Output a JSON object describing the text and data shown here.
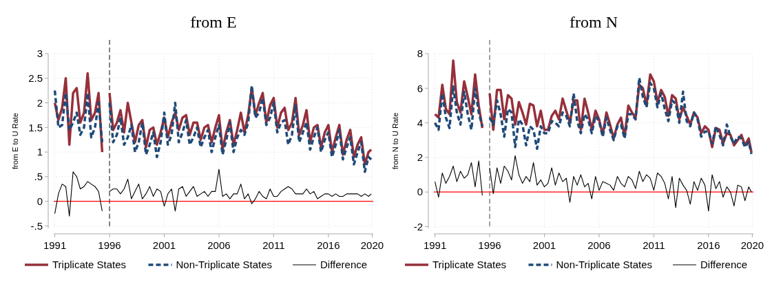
{
  "chart_data": [
    {
      "type": "line",
      "title": "from E",
      "ylabel": "from E to U Rate",
      "x": [
        1991,
        1991.33,
        1991.67,
        1992,
        1992.33,
        1992.67,
        1993,
        1993.33,
        1993.67,
        1994,
        1994.33,
        1994.67,
        1995,
        1995.33,
        1995.67,
        1996,
        1996.33,
        1996.67,
        1997,
        1997.33,
        1997.67,
        1998,
        1998.33,
        1998.67,
        1999,
        1999.33,
        1999.67,
        2000,
        2000.33,
        2000.67,
        2001,
        2001.33,
        2001.67,
        2002,
        2002.33,
        2002.67,
        2003,
        2003.33,
        2003.67,
        2004,
        2004.33,
        2004.67,
        2005,
        2005.33,
        2005.67,
        2006,
        2006.33,
        2006.67,
        2007,
        2007.33,
        2007.67,
        2008,
        2008.33,
        2008.67,
        2009,
        2009.33,
        2009.67,
        2010,
        2010.33,
        2010.67,
        2011,
        2011.33,
        2011.67,
        2012,
        2012.33,
        2012.67,
        2013,
        2013.33,
        2013.67,
        2014,
        2014.33,
        2014.67,
        2015,
        2015.33,
        2015.67,
        2016,
        2016.33,
        2016.67,
        2017,
        2017.33,
        2017.67,
        2018,
        2018.33,
        2018.67,
        2019,
        2019.33,
        2019.67,
        2019.92
      ],
      "series": [
        {
          "name": "Triplicate States",
          "color": "#96303a",
          "line_style": "solid",
          "values": [
            2.0,
            1.65,
            1.9,
            2.5,
            1.15,
            2.2,
            2.3,
            1.6,
            1.8,
            2.6,
            1.65,
            1.8,
            2.2,
            1.0,
            null,
            2.2,
            1.45,
            1.6,
            1.85,
            1.4,
            2.0,
            1.6,
            1.2,
            1.55,
            1.65,
            1.1,
            1.45,
            1.5,
            1.15,
            1.4,
            1.7,
            1.3,
            1.6,
            1.8,
            1.45,
            1.7,
            1.75,
            1.35,
            1.6,
            1.6,
            1.25,
            1.5,
            1.55,
            1.2,
            1.5,
            1.75,
            1.05,
            1.4,
            1.65,
            1.15,
            1.45,
            1.8,
            1.4,
            1.75,
            2.3,
            1.75,
            2.0,
            2.2,
            1.6,
            1.95,
            2.1,
            1.5,
            1.8,
            1.9,
            1.45,
            1.6,
            2.1,
            1.35,
            1.55,
            1.85,
            1.2,
            1.5,
            1.55,
            1.1,
            1.4,
            1.55,
            1.0,
            1.3,
            1.55,
            0.95,
            1.25,
            1.45,
            0.9,
            1.15,
            1.3,
            0.75,
            1.0,
            1.05
          ]
        },
        {
          "name": "Non-Triplicate States",
          "color": "#1f4a78",
          "line_style": "dashed",
          "values": [
            2.25,
            1.5,
            1.55,
            2.2,
            1.45,
            1.6,
            1.8,
            1.35,
            1.5,
            2.2,
            1.3,
            1.5,
            2.0,
            1.2,
            null,
            2.0,
            1.2,
            1.35,
            1.7,
            1.15,
            1.3,
            1.55,
            1.0,
            1.2,
            1.6,
            0.95,
            1.15,
            1.4,
            0.9,
            1.2,
            1.8,
            1.15,
            1.35,
            2.0,
            1.2,
            1.4,
            1.65,
            1.15,
            1.3,
            1.5,
            1.1,
            1.3,
            1.45,
            1.0,
            1.3,
            1.55,
            0.95,
            1.25,
            1.6,
            1.0,
            1.3,
            1.45,
            1.35,
            1.6,
            2.35,
            1.7,
            1.8,
            2.1,
            1.55,
            1.7,
            2.0,
            1.4,
            1.6,
            1.65,
            1.15,
            1.35,
            1.95,
            1.2,
            1.4,
            1.6,
            1.05,
            1.3,
            1.5,
            1.0,
            1.25,
            1.4,
            0.9,
            1.15,
            1.45,
            0.85,
            1.1,
            1.3,
            0.75,
            1.0,
            1.2,
            0.6,
            0.9,
            0.85
          ]
        },
        {
          "name": "Difference",
          "color": "#000000",
          "line_style": "solid",
          "values": [
            -0.25,
            0.15,
            0.35,
            0.3,
            -0.3,
            0.6,
            0.5,
            0.25,
            0.3,
            0.4,
            0.35,
            0.3,
            0.2,
            -0.2,
            null,
            0.2,
            0.25,
            0.25,
            0.15,
            0.25,
            0.45,
            0.05,
            0.2,
            0.35,
            0.05,
            0.15,
            0.3,
            0.1,
            0.25,
            0.2,
            -0.1,
            0.15,
            0.25,
            -0.2,
            0.25,
            0.3,
            0.1,
            0.2,
            0.3,
            0.1,
            0.15,
            0.2,
            0.1,
            0.2,
            0.2,
            0.65,
            0.1,
            0.15,
            0.05,
            0.15,
            0.15,
            0.35,
            0.05,
            0.15,
            -0.05,
            0.05,
            0.2,
            0.1,
            0.05,
            0.25,
            0.1,
            0.1,
            0.2,
            0.25,
            0.3,
            0.25,
            0.15,
            0.15,
            0.15,
            0.25,
            0.15,
            0.2,
            0.05,
            0.1,
            0.15,
            0.15,
            0.1,
            0.15,
            0.1,
            0.1,
            0.15,
            0.15,
            0.15,
            0.15,
            0.1,
            0.15,
            0.1,
            0.15
          ]
        }
      ],
      "xlim": [
        1990.9,
        2020.1
      ],
      "xticks": [
        1991,
        1996,
        2001,
        2006,
        2011,
        2016,
        2020
      ],
      "ylim": [
        -0.55,
        3
      ],
      "yticks": [
        {
          "value": -0.5,
          "label": "-.5"
        },
        0,
        {
          "value": 0.5,
          "label": ".5"
        },
        1,
        1.5,
        2,
        2.5,
        3
      ],
      "ref_lines": [
        {
          "axis": "x",
          "value": 1996,
          "color": "#333333",
          "line_style": "dashed"
        },
        {
          "axis": "y",
          "value": 0,
          "color": "#ff0000",
          "line_style": "solid"
        }
      ],
      "grid": true,
      "legend": "bottom"
    },
    {
      "type": "line",
      "title": "from N",
      "ylabel": "from N to U Rate",
      "x": [
        1991,
        1991.33,
        1991.67,
        1992,
        1992.33,
        1992.67,
        1993,
        1993.33,
        1993.67,
        1994,
        1994.33,
        1994.67,
        1995,
        1995.33,
        1995.67,
        1996,
        1996.33,
        1996.67,
        1997,
        1997.33,
        1997.67,
        1998,
        1998.33,
        1998.67,
        1999,
        1999.33,
        1999.67,
        2000,
        2000.33,
        2000.67,
        2001,
        2001.33,
        2001.67,
        2002,
        2002.33,
        2002.67,
        2003,
        2003.33,
        2003.67,
        2004,
        2004.33,
        2004.67,
        2005,
        2005.33,
        2005.67,
        2006,
        2006.33,
        2006.67,
        2007,
        2007.33,
        2007.67,
        2008,
        2008.33,
        2008.67,
        2009,
        2009.33,
        2009.67,
        2010,
        2010.33,
        2010.67,
        2011,
        2011.33,
        2011.67,
        2012,
        2012.33,
        2012.67,
        2013,
        2013.33,
        2013.67,
        2014,
        2014.33,
        2014.67,
        2015,
        2015.33,
        2015.67,
        2016,
        2016.33,
        2016.67,
        2017,
        2017.33,
        2017.67,
        2018,
        2018.33,
        2018.67,
        2019,
        2019.33,
        2019.67,
        2019.92
      ],
      "series": [
        {
          "name": "Triplicate States",
          "color": "#96303a",
          "line_style": "solid",
          "values": [
            4.5,
            4.3,
            6.2,
            4.8,
            4.5,
            7.6,
            5.2,
            4.6,
            6.4,
            5.5,
            4.5,
            6.8,
            5.0,
            3.7,
            null,
            5.7,
            3.6,
            5.9,
            5.9,
            4.2,
            5.6,
            5.4,
            3.9,
            5.2,
            4.6,
            3.9,
            5.1,
            5.0,
            3.8,
            4.7,
            3.6,
            3.6,
            4.4,
            4.7,
            4.2,
            5.4,
            4.7,
            4.0,
            5.3,
            5.3,
            3.6,
            5.4,
            4.6,
            3.6,
            4.7,
            4.2,
            3.3,
            4.6,
            3.9,
            3.1,
            3.9,
            4.3,
            3.2,
            5.0,
            4.6,
            4.3,
            6.2,
            6.0,
            5.0,
            6.8,
            6.4,
            5.2,
            5.9,
            5.5,
            4.4,
            5.6,
            5.4,
            4.2,
            4.9,
            4.4,
            3.9,
            4.6,
            4.3,
            3.4,
            3.8,
            3.6,
            2.6,
            3.7,
            3.6,
            2.8,
            3.4,
            3.3,
            2.7,
            3.0,
            3.3,
            2.7,
            3.1,
            2.3
          ]
        },
        {
          "name": "Non-Triplicate States",
          "color": "#1f4a78",
          "line_style": "dashed",
          "values": [
            4.0,
            3.6,
            5.7,
            4.3,
            3.7,
            6.1,
            4.6,
            3.9,
            5.8,
            4.5,
            3.6,
            6.0,
            4.6,
            3.8,
            null,
            4.3,
            3.9,
            5.3,
            4.5,
            3.2,
            4.8,
            4.6,
            2.6,
            4.2,
            3.9,
            2.7,
            3.8,
            3.6,
            2.5,
            3.8,
            3.4,
            3.4,
            4.1,
            4.0,
            3.8,
            4.6,
            4.4,
            3.8,
            5.7,
            4.1,
            3.4,
            4.5,
            4.2,
            3.4,
            4.4,
            4.1,
            3.2,
            4.3,
            3.6,
            3.0,
            3.8,
            3.9,
            3.1,
            4.5,
            4.5,
            4.2,
            6.6,
            5.5,
            4.9,
            6.3,
            6.0,
            4.9,
            5.7,
            4.8,
            4.1,
            5.3,
            5.1,
            4.0,
            5.8,
            4.1,
            3.8,
            4.6,
            4.2,
            3.2,
            3.5,
            3.5,
            2.8,
            3.8,
            3.3,
            2.7,
            3.9,
            3.2,
            2.8,
            3.2,
            3.1,
            2.6,
            2.9,
            2.2
          ]
        },
        {
          "name": "Difference",
          "color": "#000000",
          "line_style": "solid",
          "values": [
            0.6,
            -0.3,
            1.1,
            0.5,
            0.9,
            1.5,
            0.6,
            1.2,
            0.8,
            1.0,
            1.7,
            0.3,
            1.8,
            -0.2,
            null,
            1.4,
            -0.1,
            1.4,
            0.5,
            1.5,
            1.2,
            0.7,
            2.1,
            1.0,
            0.5,
            0.9,
            0.6,
            1.7,
            0.4,
            0.7,
            0.3,
            0.5,
            1.4,
            0.4,
            1.1,
            0.6,
            0.8,
            -0.6,
            0.9,
            0.4,
            1.0,
            0.3,
            0.5,
            -0.4,
            0.9,
            0.1,
            0.6,
            0.5,
            0.4,
            0.1,
            0.9,
            0.5,
            0.3,
            0.9,
            0.7,
            0.2,
            1.2,
            0.6,
            1.0,
            0.8,
            0.1,
            1.1,
            0.9,
            0.5,
            -0.4,
            0.9,
            -0.9,
            0.8,
            0.4,
            0.1,
            -0.7,
            0.6,
            0.1,
            0.8,
            0.4,
            -1.1,
            1.0,
            0.2,
            0.6,
            -0.3,
            0.3,
            0.0,
            -0.8,
            0.4,
            0.3,
            -0.5,
            0.3,
            0.0
          ]
        }
      ],
      "xlim": [
        1990.9,
        2020.1
      ],
      "xticks": [
        1991,
        1996,
        2001,
        2006,
        2011,
        2016,
        2020
      ],
      "ylim": [
        -2.1,
        8
      ],
      "yticks": [
        -2,
        0,
        2,
        4,
        6,
        8
      ],
      "ref_lines": [
        {
          "axis": "x",
          "value": 1996,
          "color": "#666666",
          "line_style": "dashed"
        },
        {
          "axis": "y",
          "value": 0,
          "color": "#ff0000",
          "line_style": "solid"
        }
      ],
      "grid": true,
      "legend": "bottom"
    }
  ]
}
